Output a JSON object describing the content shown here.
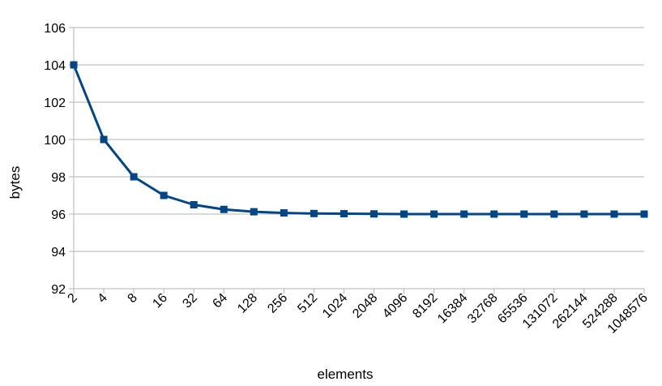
{
  "chart_data": {
    "type": "line",
    "categories": [
      "2",
      "4",
      "8",
      "16",
      "32",
      "64",
      "128",
      "256",
      "512",
      "1024",
      "2048",
      "4096",
      "8192",
      "16384",
      "32768",
      "65536",
      "131072",
      "262144",
      "524288",
      "1048576"
    ],
    "series": [
      {
        "values": [
          104,
          100,
          98,
          97,
          96.5,
          96.25,
          96.125,
          96.0625,
          96.03,
          96.02,
          96.01,
          96.0,
          96.0,
          96.0,
          96.0,
          96.0,
          96.0,
          96.0,
          96.0,
          96.0
        ],
        "color": "#004586",
        "marker": "square"
      }
    ],
    "title": "",
    "xlabel": "elements",
    "ylabel": "bytes",
    "ylim": [
      92,
      106
    ],
    "yticks": [
      92,
      94,
      96,
      98,
      100,
      102,
      104,
      106
    ],
    "grid": true,
    "legend": "none"
  }
}
